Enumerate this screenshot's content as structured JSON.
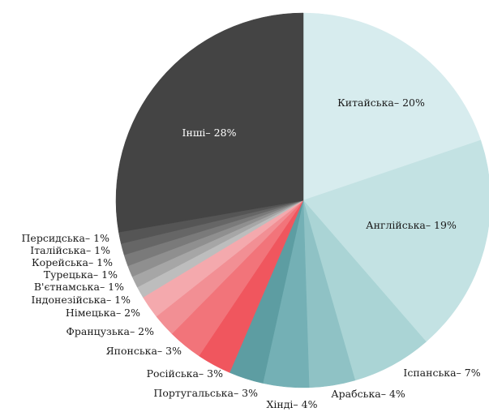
{
  "chart_data": {
    "type": "pie",
    "title": "",
    "start_angle_deg": 0,
    "direction": "clockwise",
    "slices": [
      {
        "label": "Китайська",
        "value": 20,
        "display": "Китайська– 20%",
        "color": "#d7ecee",
        "label_color": "#1a1a1a"
      },
      {
        "label": "Англійська",
        "value": 19,
        "display": "Англійська– 19%",
        "color": "#c3e2e3",
        "label_color": "#1a1a1a"
      },
      {
        "label": "Іспанська",
        "value": 7,
        "display": "Іспанська– 7%",
        "color": "#aad4d5",
        "label_color": "#1a1a1a"
      },
      {
        "label": "Арабська",
        "value": 4,
        "display": "Арабська– 4%",
        "color": "#8fc2c5",
        "label_color": "#1a1a1a"
      },
      {
        "label": "Хінді",
        "value": 4,
        "display": "Хінді– 4%",
        "color": "#74b0b5",
        "label_color": "#1a1a1a"
      },
      {
        "label": "Португальська",
        "value": 3,
        "display": "Португальська– 3%",
        "color": "#5d9da2",
        "label_color": "#1a1a1a"
      },
      {
        "label": "Російська",
        "value": 3,
        "display": "Російська– 3%",
        "color": "#f0565e",
        "label_color": "#1a1a1a"
      },
      {
        "label": "Японська",
        "value": 3,
        "display": "Японська– 3%",
        "color": "#f2747a",
        "label_color": "#1a1a1a"
      },
      {
        "label": "Французька",
        "value": 2,
        "display": "Французька– 2%",
        "color": "#f28f94",
        "label_color": "#1a1a1a"
      },
      {
        "label": "Німецька",
        "value": 2,
        "display": "Німецька– 2%",
        "color": "#f4a9ad",
        "label_color": "#1a1a1a"
      },
      {
        "label": "Індонезійська",
        "value": 1,
        "display": "Індонезійська– 1%",
        "color": "#bdbdbd",
        "label_color": "#1a1a1a"
      },
      {
        "label": "В'єтнамська",
        "value": 1,
        "display": "В'єтнамська– 1%",
        "color": "#a6a6a6",
        "label_color": "#1a1a1a"
      },
      {
        "label": "Турецька",
        "value": 1,
        "display": "Турецька– 1%",
        "color": "#8f8f8f",
        "label_color": "#1a1a1a"
      },
      {
        "label": "Корейська",
        "value": 1,
        "display": "Корейська– 1%",
        "color": "#7a7a7a",
        "label_color": "#1a1a1a"
      },
      {
        "label": "Італійська",
        "value": 1,
        "display": "Італійська– 1%",
        "color": "#666666",
        "label_color": "#1a1a1a"
      },
      {
        "label": "Персидська",
        "value": 1,
        "display": "Персидська– 1%",
        "color": "#555555",
        "label_color": "#1a1a1a"
      },
      {
        "label": "Інші",
        "value": 28,
        "display": "Інші– 28%",
        "color": "#444444",
        "label_color": "#ffffff"
      }
    ]
  }
}
